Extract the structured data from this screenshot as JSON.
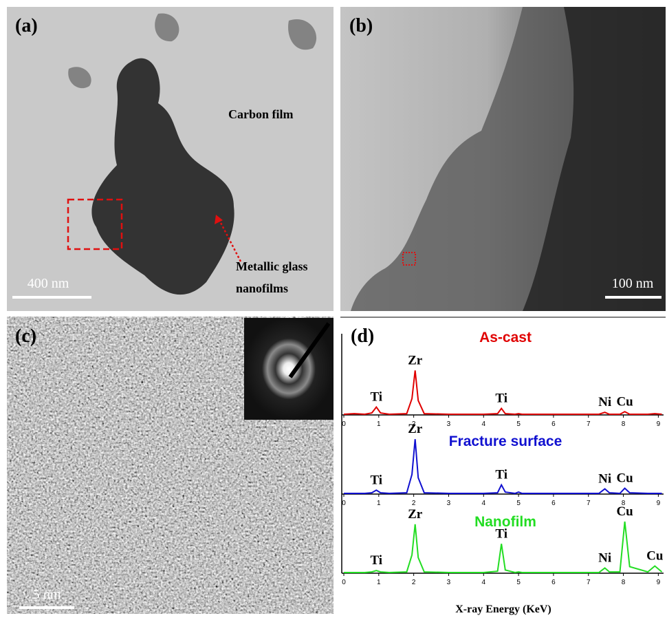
{
  "panels": {
    "a": {
      "label": "(a)",
      "annotation": "Carbon film",
      "arrow_label": [
        "Metallic glass",
        "nanofilms"
      ],
      "scale_bar": "400 nm"
    },
    "b": {
      "label": "(b)",
      "scale_bar": "100 nm"
    },
    "c": {
      "label": "(c)",
      "scale_bar": "5 nm"
    }
  },
  "chart_data": {
    "type": "line",
    "panel_label": "(d)",
    "x_label": "X-ray Energy (KeV)",
    "x": [
      0,
      0.3,
      0.6,
      0.8,
      0.93,
      1.05,
      1.3,
      1.8,
      1.95,
      2.04,
      2.13,
      2.3,
      3,
      4,
      4.4,
      4.51,
      4.62,
      4.9,
      5,
      5.1,
      6,
      7.3,
      7.47,
      7.6,
      7.9,
      8.04,
      8.18,
      8.7,
      8.9,
      9.1
    ],
    "xlim": [
      0,
      9.15
    ],
    "xticks": [
      0,
      1,
      2,
      3,
      4,
      5,
      6,
      7,
      8,
      9
    ],
    "ylim": [
      0,
      100
    ],
    "series": [
      {
        "name": "As-cast",
        "color": "#e00000",
        "values": [
          1,
          2,
          1,
          3,
          12,
          3,
          1,
          2,
          25,
          68,
          22,
          2,
          1,
          1,
          2,
          10,
          2,
          1,
          2,
          1,
          1,
          1,
          4,
          1,
          1,
          5,
          1,
          1,
          2,
          1
        ],
        "peak_labels": [
          {
            "label": "Ti",
            "x": 0.93
          },
          {
            "label": "Zr",
            "x": 2.04
          },
          {
            "label": "Ti",
            "x": 4.51
          },
          {
            "label": "Ni",
            "x": 7.47
          },
          {
            "label": "Cu",
            "x": 8.04
          }
        ]
      },
      {
        "name": "Fracture surface",
        "color": "#1010d0",
        "values": [
          1,
          1,
          1,
          2,
          6,
          2,
          1,
          2,
          30,
          84,
          25,
          2,
          1,
          1,
          2,
          14,
          3,
          1,
          3,
          1,
          1,
          1,
          8,
          2,
          1,
          9,
          2,
          1,
          1,
          1
        ],
        "peak_labels": [
          {
            "label": "Ti",
            "x": 0.93
          },
          {
            "label": "Zr",
            "x": 2.04
          },
          {
            "label": "Ti",
            "x": 4.51
          },
          {
            "label": "Ni",
            "x": 7.47
          },
          {
            "label": "Cu",
            "x": 8.04
          }
        ]
      },
      {
        "name": "Nanofilm",
        "color": "#22dd22",
        "values": [
          1,
          1,
          1,
          2,
          4,
          2,
          1,
          2,
          28,
          75,
          24,
          2,
          1,
          1,
          3,
          45,
          5,
          1,
          2,
          1,
          1,
          1,
          8,
          2,
          2,
          79,
          10,
          2,
          11,
          2
        ],
        "peak_labels": [
          {
            "label": "Ti",
            "x": 0.93
          },
          {
            "label": "Zr",
            "x": 2.04
          },
          {
            "label": "Ti",
            "x": 4.51
          },
          {
            "label": "Ni",
            "x": 7.47
          },
          {
            "label": "Cu",
            "x": 8.04
          },
          {
            "label": "Cu",
            "x": 8.9
          }
        ]
      }
    ]
  }
}
